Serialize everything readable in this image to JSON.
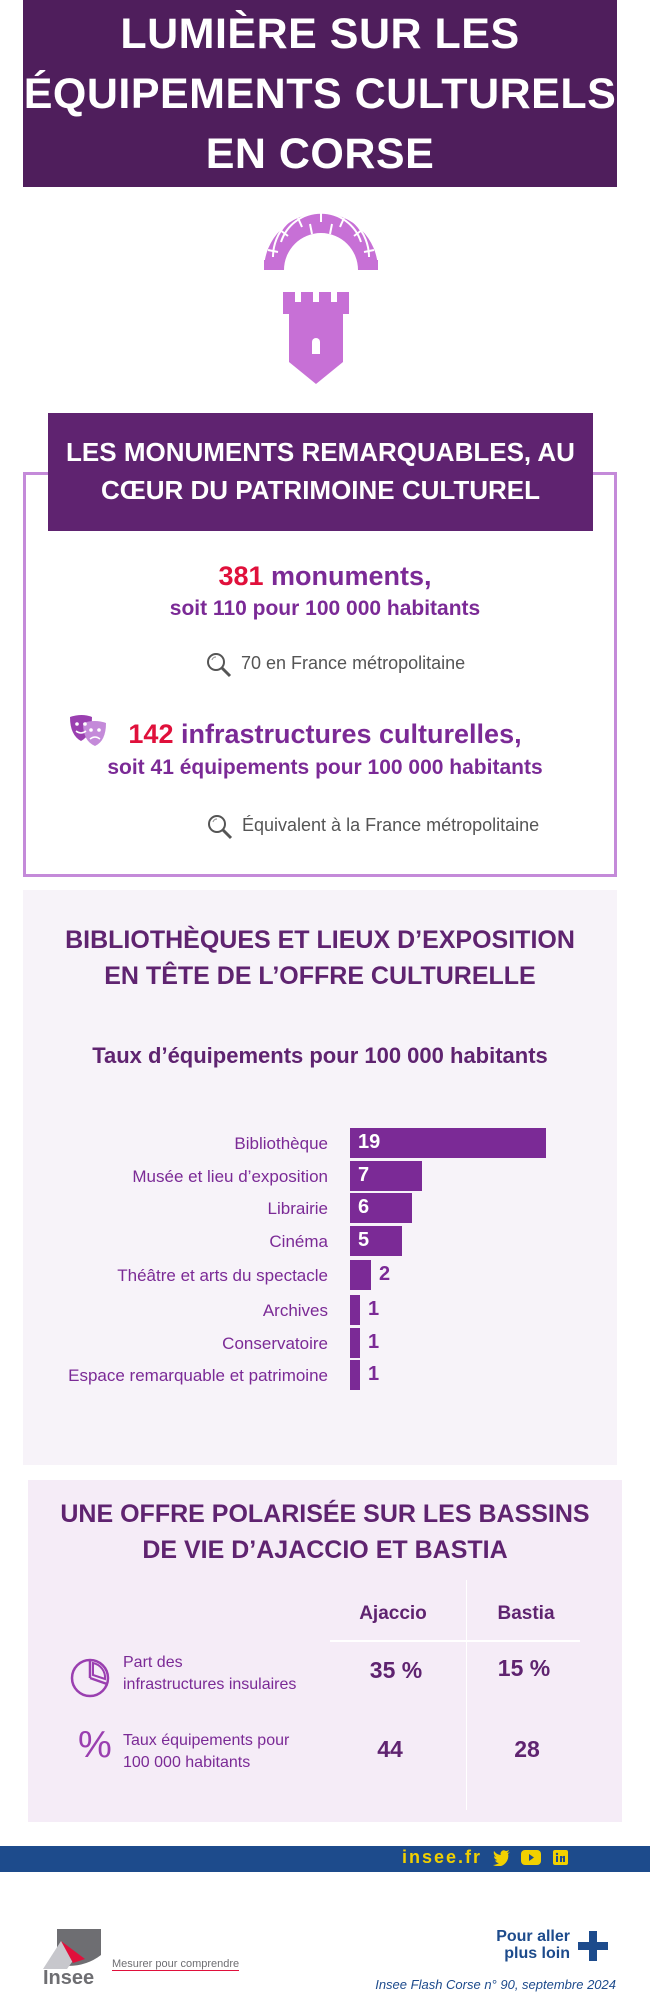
{
  "title": {
    "lines": [
      "LUMIÈRE SUR LES",
      "ÉQUIPEMENTS CULTURELS",
      "EN CORSE"
    ]
  },
  "section1": {
    "header": [
      "LES MONUMENTS REMARQUABLES, AU",
      "CŒUR DU PATRIMOINE CULTUREL"
    ],
    "stat1": {
      "number": "381",
      "label": " monuments,",
      "sub": "soit 110 pour 100 000 habitants",
      "note": "70 en France métropolitaine",
      "note_icon": "magnifier-icon"
    },
    "stat2": {
      "number": "142",
      "label": " infrastructures culturelles,",
      "sub": "soit 41 équipements pour 100 000 habitants",
      "note": "Équivalent à la France métropolitaine",
      "note_icon": "magnifier-icon",
      "icon": "theater-masks-icon"
    }
  },
  "section2": {
    "title": [
      "BIBLIOTHÈQUES ET LIEUX D’EXPOSITION",
      "EN TÊTE DE L’OFFRE CULTURELLE"
    ],
    "subtitle": "Taux d’équipements pour 100 000 habitants"
  },
  "chart_data": {
    "type": "bar",
    "orientation": "horizontal",
    "title": "Taux d’équipements pour 100 000 habitants",
    "categories": [
      "Bibliothèque",
      "Musée et lieu d’exposition",
      "Librairie",
      "Cinéma",
      "Théâtre et arts du spectacle",
      "Archives",
      "Conservatoire",
      "Espace remarquable et patrimoine"
    ],
    "values": [
      19,
      7,
      6,
      5,
      2,
      1,
      1,
      1
    ],
    "color": "#7b2a96"
  },
  "section3": {
    "title": [
      "UNE OFFRE POLARISÉE SUR LES BASSINS",
      "DE VIE D’AJACCIO ET BASTIA"
    ],
    "columns": [
      "Ajaccio",
      "Bastia"
    ],
    "rows": [
      {
        "icon": "pie-chart-icon",
        "label_lines": [
          "Part des",
          "infrastructures insulaires"
        ],
        "values": [
          "35 %",
          "15 %"
        ]
      },
      {
        "icon": "percent-icon",
        "label_lines": [
          "Taux équipements pour",
          "100 000 habitants"
        ],
        "values": [
          "44",
          "28"
        ]
      }
    ]
  },
  "footer": {
    "link": "insee.fr",
    "social_icons": [
      "twitter-icon",
      "youtube-icon",
      "linkedin-icon"
    ],
    "logo_text": "Insee",
    "tagline": "Mesurer pour comprendre",
    "more": [
      "Pour aller",
      "plus loin"
    ],
    "publication": "Insee Flash Corse n° 90, septembre 2024"
  },
  "colors": {
    "dark_purple": "#4f1e5c",
    "purple": "#7b2a96",
    "light_purple": "#c48ad9",
    "red": "#e0103b",
    "navy": "#1d4b8c"
  }
}
